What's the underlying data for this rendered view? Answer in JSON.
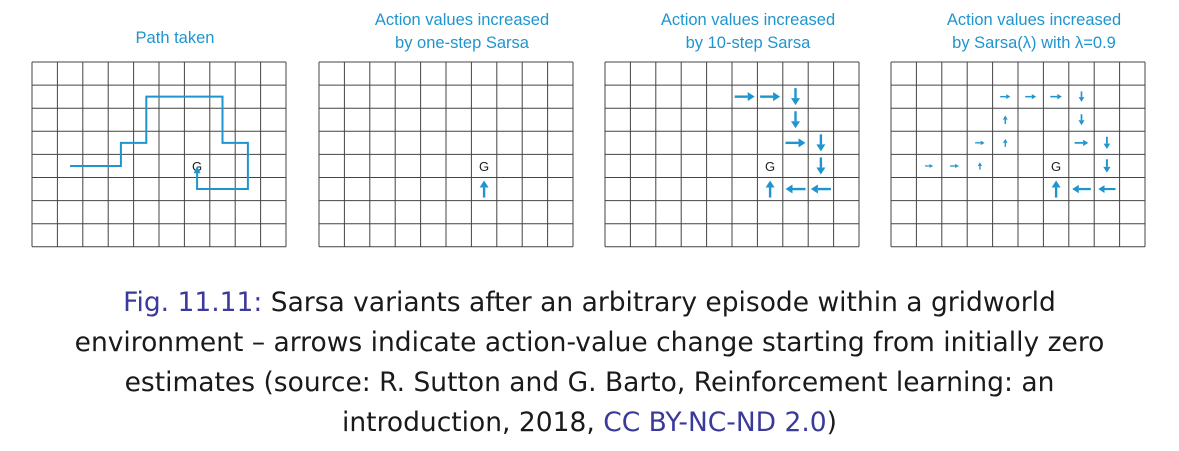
{
  "panels": [
    {
      "title_lines": [
        "Path taken"
      ]
    },
    {
      "title_lines": [
        "Action values increased",
        "by one-step Sarsa"
      ]
    },
    {
      "title_lines": [
        "Action values increased",
        "by 10-step Sarsa"
      ]
    },
    {
      "title_lines": [
        "Action values increased",
        "by Sarsa(λ) with λ=0.9"
      ]
    }
  ],
  "goal_label": "G",
  "grid": {
    "cols": 10,
    "rows": 8,
    "goal": [
      6,
      4
    ]
  },
  "colors": {
    "accent": "#1f95cf",
    "grid_line": "#444444",
    "caption_link": "#3a3a9a"
  },
  "path": [
    [
      1.5,
      4.5
    ],
    [
      3.5,
      4.5
    ],
    [
      3.5,
      3.5
    ],
    [
      4.5,
      3.5
    ],
    [
      4.5,
      1.5
    ],
    [
      7.5,
      1.5
    ],
    [
      7.5,
      3.5
    ],
    [
      8.5,
      3.5
    ],
    [
      8.5,
      5.5
    ],
    [
      6.5,
      5.5
    ],
    [
      6.5,
      4.6
    ]
  ],
  "arrows_one_step": [
    {
      "cell": [
        6,
        5
      ],
      "dir": "up",
      "size": 1
    }
  ],
  "arrows_ten_step": [
    {
      "cell": [
        5,
        1
      ],
      "dir": "right",
      "size": 1
    },
    {
      "cell": [
        6,
        1
      ],
      "dir": "right",
      "size": 1
    },
    {
      "cell": [
        7,
        1
      ],
      "dir": "down",
      "size": 1
    },
    {
      "cell": [
        7,
        2
      ],
      "dir": "down",
      "size": 1
    },
    {
      "cell": [
        7,
        3
      ],
      "dir": "right",
      "size": 1
    },
    {
      "cell": [
        8,
        3
      ],
      "dir": "down",
      "size": 1
    },
    {
      "cell": [
        8,
        4
      ],
      "dir": "down",
      "size": 1
    },
    {
      "cell": [
        8,
        5
      ],
      "dir": "left",
      "size": 1
    },
    {
      "cell": [
        7,
        5
      ],
      "dir": "left",
      "size": 1
    },
    {
      "cell": [
        6,
        5
      ],
      "dir": "up",
      "size": 1
    }
  ],
  "arrows_lambda": [
    {
      "cell": [
        1,
        4
      ],
      "dir": "right",
      "size": 0.15
    },
    {
      "cell": [
        2,
        4
      ],
      "dir": "right",
      "size": 0.2
    },
    {
      "cell": [
        3,
        4
      ],
      "dir": "up",
      "size": 0.2
    },
    {
      "cell": [
        3,
        3
      ],
      "dir": "right",
      "size": 0.25
    },
    {
      "cell": [
        4,
        3
      ],
      "dir": "up",
      "size": 0.25
    },
    {
      "cell": [
        4,
        2
      ],
      "dir": "up",
      "size": 0.3
    },
    {
      "cell": [
        4,
        1
      ],
      "dir": "right",
      "size": 0.3
    },
    {
      "cell": [
        5,
        1
      ],
      "dir": "right",
      "size": 0.35
    },
    {
      "cell": [
        6,
        1
      ],
      "dir": "right",
      "size": 0.4
    },
    {
      "cell": [
        7,
        1
      ],
      "dir": "down",
      "size": 0.45
    },
    {
      "cell": [
        7,
        2
      ],
      "dir": "down",
      "size": 0.5
    },
    {
      "cell": [
        7,
        3
      ],
      "dir": "right",
      "size": 0.55
    },
    {
      "cell": [
        8,
        3
      ],
      "dir": "down",
      "size": 0.6
    },
    {
      "cell": [
        8,
        4
      ],
      "dir": "down",
      "size": 0.7
    },
    {
      "cell": [
        8,
        5
      ],
      "dir": "left",
      "size": 0.8
    },
    {
      "cell": [
        7,
        5
      ],
      "dir": "left",
      "size": 0.9
    },
    {
      "cell": [
        6,
        5
      ],
      "dir": "up",
      "size": 1
    }
  ],
  "caption": {
    "fig_label": "Fig. 11.11:",
    "lines": [
      "Sarsa variants after an arbitrary episode within a gridworld",
      "environment – arrows indicate action-value change starting from initially zero",
      "estimates (source: R. Sutton and G. Barto, Reinforcement learning: an",
      "introduction, 2018, "
    ],
    "license": "CC BY-NC-ND 2.0",
    "tail": ")"
  }
}
